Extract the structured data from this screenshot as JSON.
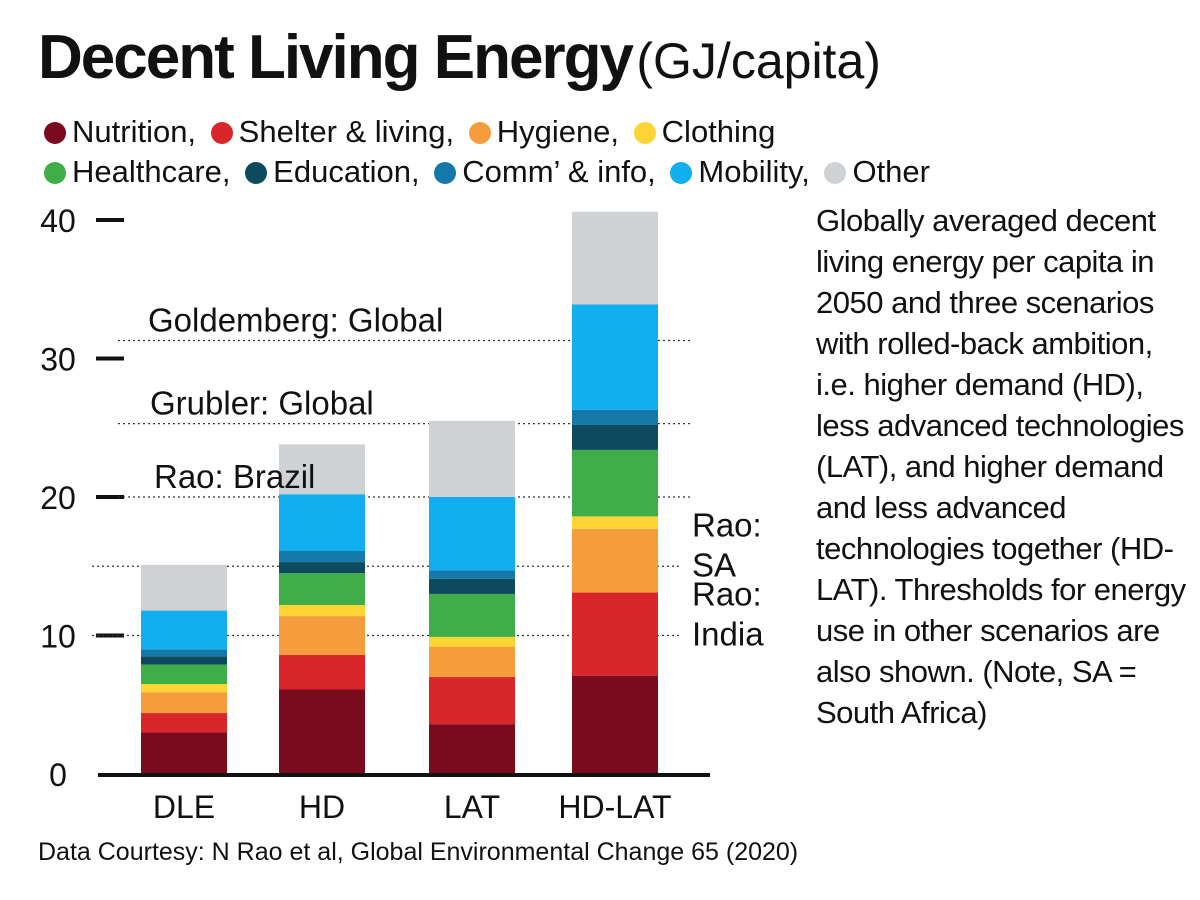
{
  "header": {
    "title": "Decent Living Energy",
    "unit": "(GJ/capita)"
  },
  "legend": {
    "row1": [
      {
        "label": "Nutrition,",
        "color": "#7a0a1e"
      },
      {
        "label": "Shelter & living,",
        "color": "#d8262b"
      },
      {
        "label": "Hygiene,",
        "color": "#f59c3c"
      },
      {
        "label": "Clothing",
        "color": "#fcd535"
      }
    ],
    "row2": [
      {
        "label": "Healthcare,",
        "color": "#3fae49"
      },
      {
        "label": "Education,",
        "color": "#0d4a5e"
      },
      {
        "label": "Comm’ & info,",
        "color": "#1479a8"
      },
      {
        "label": "Mobility,",
        "color": "#11aef0"
      },
      {
        "label": "Other",
        "color": "#cfd2d5"
      }
    ]
  },
  "description": "Globally averaged decent living energy per capita in 2050 and three scenarios with rolled-back ambition, i.e. higher demand (HD), less advanced technologies (LAT), and higher demand and less advanced technologies together (HD-LAT). Thresholds for energy use in other scenarios are also shown. (Note, SA = South Africa)",
  "source": "Data Courtesy: N Rao et al, Global Environmental Change 65 (2020)",
  "chart_data": {
    "type": "bar",
    "stacked": true,
    "categories": [
      "DLE",
      "HD",
      "LAT",
      "HD-LAT"
    ],
    "ylim": [
      0,
      40
    ],
    "yticks": [
      0,
      10,
      20,
      30,
      40
    ],
    "series": [
      {
        "name": "Nutrition",
        "color": "#7a0a1e",
        "values": [
          3.0,
          6.1,
          3.6,
          7.1
        ]
      },
      {
        "name": "Shelter & living",
        "color": "#d8262b",
        "values": [
          1.4,
          2.5,
          3.4,
          6.0
        ]
      },
      {
        "name": "Hygiene",
        "color": "#f59c3c",
        "values": [
          1.5,
          2.8,
          2.2,
          4.6
        ]
      },
      {
        "name": "Clothing",
        "color": "#fcd535",
        "values": [
          0.6,
          0.8,
          0.7,
          0.9
        ]
      },
      {
        "name": "Healthcare",
        "color": "#3fae49",
        "values": [
          1.4,
          2.3,
          3.1,
          4.8
        ]
      },
      {
        "name": "Education",
        "color": "#0d4a5e",
        "values": [
          0.6,
          0.8,
          1.1,
          1.8
        ]
      },
      {
        "name": "Comm’ & info",
        "color": "#1479a8",
        "values": [
          0.5,
          0.8,
          0.6,
          1.1
        ]
      },
      {
        "name": "Mobility",
        "color": "#11aef0",
        "values": [
          2.8,
          4.1,
          5.3,
          7.6
        ]
      },
      {
        "name": "Other",
        "color": "#cfd2d5",
        "values": [
          3.3,
          3.6,
          5.5,
          6.7
        ]
      }
    ],
    "thresholds": [
      {
        "label": "Goldemberg: Global",
        "value": 31.3,
        "side": "left"
      },
      {
        "label": "Grubler: Global",
        "value": 25.3,
        "side": "left"
      },
      {
        "label": "Rao: Brazil",
        "value": 20.0,
        "side": "left"
      },
      {
        "label": "Rao:",
        "label2": "SA",
        "value": 15.0,
        "side": "right"
      },
      {
        "label": "Rao:",
        "label2": "India",
        "value": 10.0,
        "side": "right"
      }
    ]
  }
}
